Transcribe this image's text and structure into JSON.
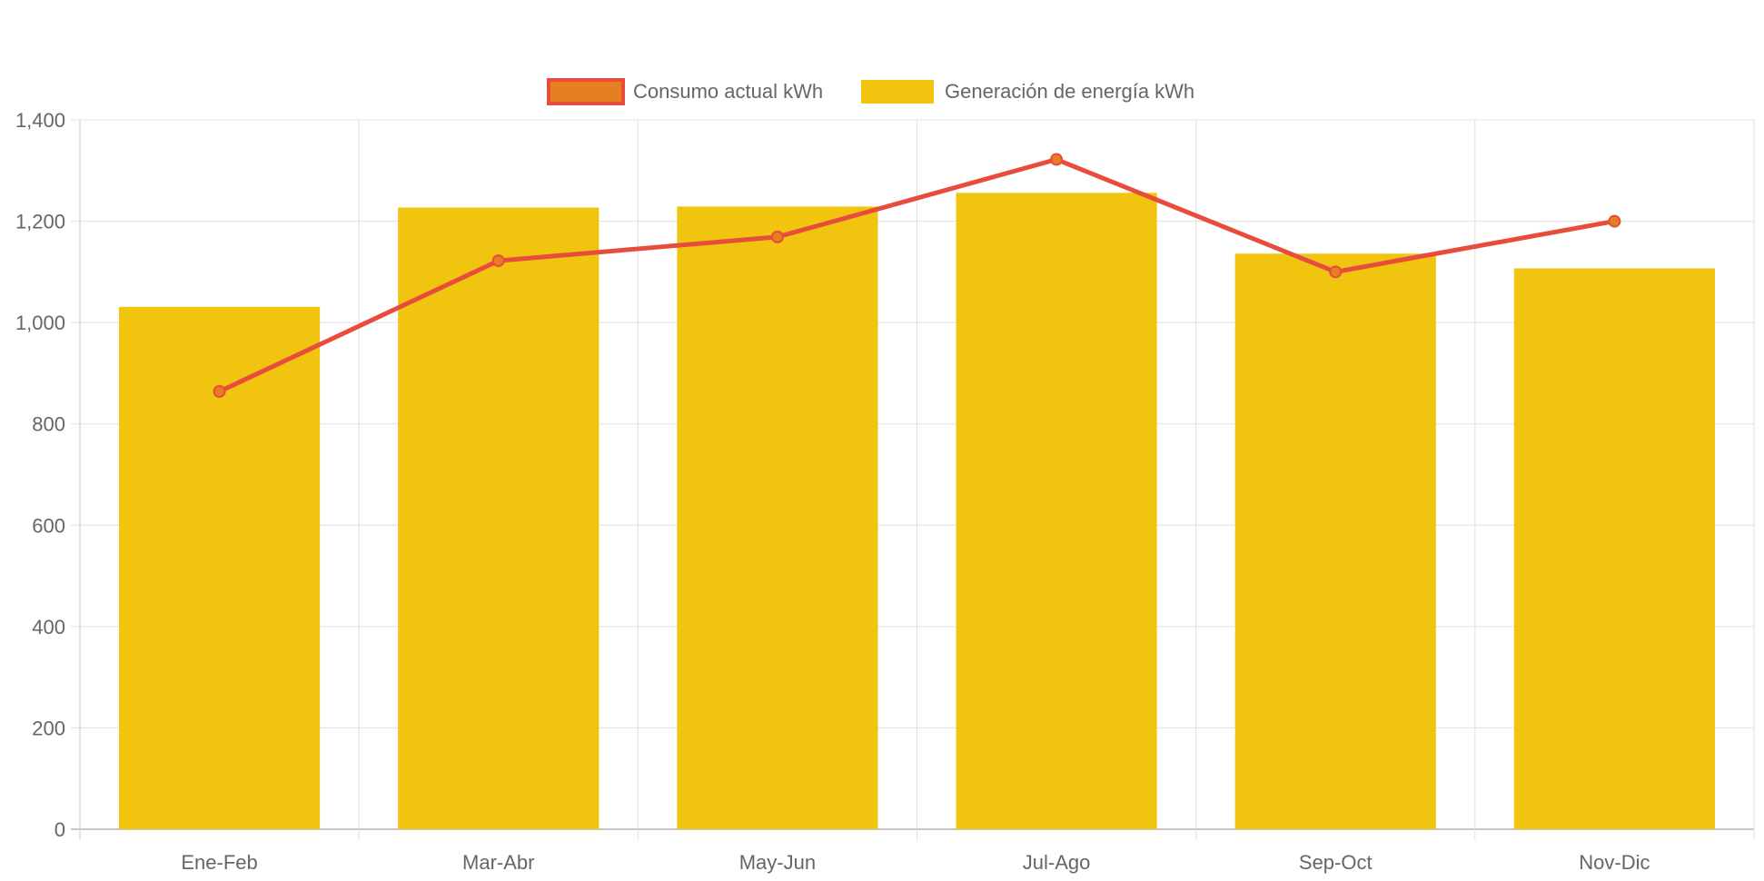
{
  "chart_data": {
    "type": "bar",
    "title": "",
    "xlabel": "",
    "ylabel": "",
    "categories": [
      "Ene-Feb",
      "Mar-Abr",
      "May-Jun",
      "Jul-Ago",
      "Sep-Oct",
      "Nov-Dic"
    ],
    "ylim": [
      0,
      1400
    ],
    "yticks": [
      0,
      200,
      400,
      600,
      800,
      1000,
      1200,
      1400
    ],
    "ytick_labels": [
      "0",
      "200",
      "400",
      "600",
      "800",
      "1,000",
      "1,200",
      "1,400"
    ],
    "grid": true,
    "legend_position": "top",
    "series": [
      {
        "name": "Consumo actual kWh",
        "type": "line",
        "color": "#e74c3c",
        "point_color": "#e67e22",
        "values": [
          864,
          1122,
          1169,
          1322,
          1100,
          1200
        ]
      },
      {
        "name": "Generación de energía kWh",
        "type": "bar",
        "color": "#f1c40f",
        "values": [
          1031,
          1227,
          1229,
          1256,
          1136,
          1107
        ]
      }
    ]
  }
}
